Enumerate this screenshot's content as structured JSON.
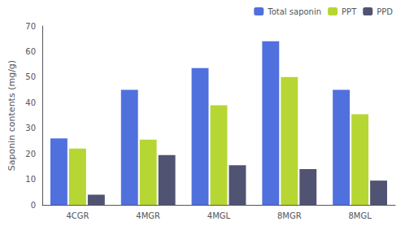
{
  "chart_data": {
    "type": "bar",
    "categories": [
      "4CGR",
      "4MGR",
      "4MGL",
      "8MGR",
      "8MGL"
    ],
    "series": [
      {
        "name": "Total saponin",
        "values": [
          26,
          45,
          53.5,
          64,
          45
        ]
      },
      {
        "name": "PPT",
        "values": [
          22,
          25.5,
          39,
          50,
          35.5
        ]
      },
      {
        "name": "PPD",
        "values": [
          4,
          19.5,
          15.5,
          14,
          9.5
        ]
      }
    ],
    "ylabel": "Saponin contents (mg/g)",
    "ylim": [
      0,
      70
    ],
    "yticks": [
      0,
      10,
      20,
      30,
      40,
      50,
      60,
      70
    ],
    "grid": false,
    "legend": "upper right"
  }
}
